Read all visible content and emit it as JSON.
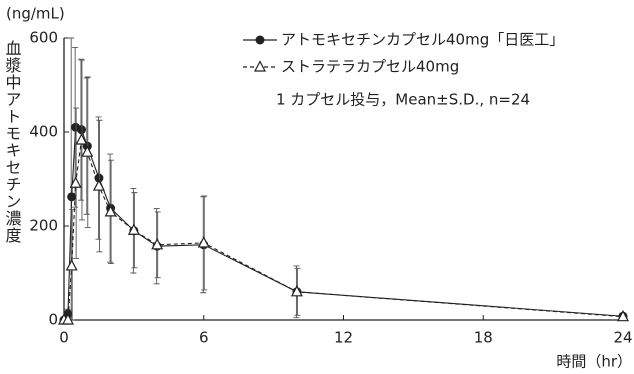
{
  "chart_data": {
    "type": "line",
    "y_unit": "(ng/mL)",
    "y_label": "血漿中アトモキセチン濃度",
    "x_label": "時間（hr）",
    "note": "1 カプセル投与，Mean±S.D., n=24",
    "x": [
      0,
      0.17,
      0.33,
      0.5,
      0.75,
      1,
      1.5,
      2,
      3,
      4,
      6,
      10,
      24
    ],
    "series": [
      {
        "name": "アトモキセチンカプセル40mg「日医工」",
        "color": "#222222",
        "marker": "circle",
        "line_style": "solid",
        "values": [
          0,
          13,
          262,
          410,
          405,
          370,
          302,
          238,
          190,
          157,
          160,
          60,
          8
        ],
        "errors": [
          0,
          10,
          338,
          170,
          150,
          145,
          130,
          115,
          90,
          80,
          102,
          55,
          6
        ]
      },
      {
        "name": "ストラテラカプセル40mg",
        "color": "#222222",
        "marker": "triangle",
        "line_style": "dashed",
        "values": [
          0,
          0,
          115,
          291,
          383,
          357,
          285,
          230,
          191,
          160,
          164,
          60,
          7
        ],
        "errors": [
          0,
          5,
          120,
          160,
          170,
          160,
          140,
          110,
          80,
          70,
          100,
          50,
          5
        ]
      }
    ],
    "xlim": [
      0,
      24
    ],
    "xticks": [
      0,
      6,
      12,
      18,
      24
    ],
    "ylim": [
      0,
      600
    ],
    "yticks": [
      0,
      200,
      400,
      600
    ]
  }
}
